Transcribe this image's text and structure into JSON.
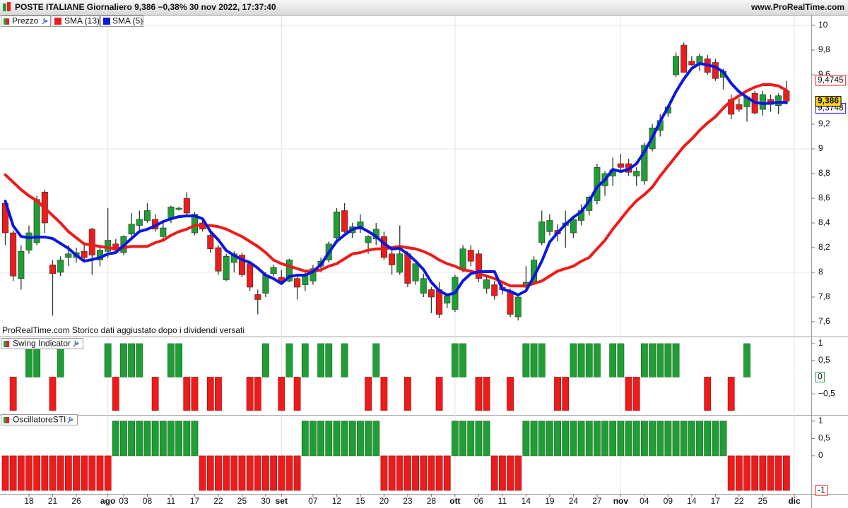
{
  "header": {
    "title": "POSTE ITALIANE Giornaliero 9,386 −0,38% 30 nov 2022, 17:37:40",
    "source": "www.ProRealTime.com"
  },
  "chart_data": [
    {
      "type": "candlestick",
      "name": "Prezzo",
      "annotation": "ProRealTime.com Storico dati aggiustato dopo i dividendi versati",
      "up_color": "#1f9e35",
      "down_color": "#ee1b1b",
      "price_label": "9,386",
      "grid": true,
      "categories": [
        null,
        null,
        null,
        "18",
        null,
        null,
        "21",
        null,
        null,
        "26",
        null,
        null,
        null,
        "ago",
        null,
        "03",
        null,
        null,
        "08",
        null,
        null,
        "11",
        null,
        null,
        "17",
        null,
        null,
        "22",
        null,
        null,
        "25",
        null,
        null,
        "30",
        null,
        "set",
        null,
        null,
        null,
        "07",
        null,
        null,
        "12",
        null,
        null,
        "15",
        null,
        null,
        "20",
        null,
        null,
        "23",
        null,
        null,
        "28",
        null,
        null,
        "ott",
        null,
        null,
        "06",
        null,
        null,
        "11",
        null,
        null,
        "14",
        null,
        null,
        "19",
        null,
        null,
        "24",
        null,
        null,
        "27",
        null,
        null,
        "nov",
        null,
        null,
        "04",
        null,
        null,
        "09",
        null,
        null,
        "14",
        null,
        null,
        "17",
        null,
        null,
        "22",
        null,
        null,
        "25",
        null,
        null,
        null,
        "dic"
      ],
      "open": [
        8.56,
        8.32,
        7.95,
        8.18,
        8.24,
        8.65,
        8.06,
        8.0,
        8.12,
        8.12,
        8.17,
        8.35,
        8.1,
        8.17,
        8.23,
        8.16,
        8.31,
        8.38,
        8.42,
        8.43,
        8.29,
        8.44,
        8.51,
        8.6,
        8.32,
        8.4,
        8.3,
        8.2,
        7.94,
        8.08,
        8.14,
        8.07,
        7.82,
        7.83,
        7.99,
        7.96,
        7.93,
        7.95,
        7.9,
        7.93,
        8.05,
        8.1,
        8.28,
        8.5,
        8.32,
        8.35,
        8.24,
        8.27,
        8.29,
        8.15,
        8.0,
        8.15,
        7.93,
        7.83,
        7.86,
        7.86,
        7.75,
        7.7,
        8.03,
        8.18,
        8.15,
        7.87,
        7.9,
        7.88,
        7.85,
        7.64,
        7.88,
        7.92,
        8.24,
        8.33,
        8.34,
        8.38,
        8.32,
        8.42,
        8.5,
        8.58,
        8.7,
        8.78,
        8.88,
        8.88,
        8.78,
        8.74,
        9.0,
        9.15,
        9.29,
        9.6,
        9.84,
        9.71,
        9.69,
        9.73,
        9.7,
        9.58,
        9.4,
        9.36,
        9.34,
        9.45,
        9.32,
        9.4,
        9.35,
        9.47,
        null
      ],
      "high": [
        8.58,
        8.34,
        8.22,
        8.38,
        8.62,
        8.67,
        8.1,
        8.13,
        8.22,
        8.2,
        8.22,
        8.36,
        8.2,
        8.52,
        8.27,
        8.3,
        8.48,
        8.5,
        8.56,
        8.47,
        8.4,
        8.54,
        8.53,
        8.65,
        8.49,
        8.44,
        8.32,
        8.22,
        8.15,
        8.17,
        8.16,
        8.09,
        7.86,
        8.0,
        8.06,
        8.02,
        8.11,
        7.98,
        8.0,
        8.06,
        8.12,
        8.25,
        8.52,
        8.56,
        8.4,
        8.47,
        8.3,
        8.4,
        8.33,
        8.2,
        8.38,
        8.17,
        8.07,
        7.99,
        7.88,
        7.92,
        7.82,
        7.98,
        8.22,
        8.22,
        8.18,
        7.96,
        7.93,
        7.92,
        7.87,
        7.83,
        8.05,
        8.13,
        8.5,
        8.47,
        8.39,
        8.5,
        8.45,
        8.55,
        8.62,
        8.88,
        8.82,
        8.93,
        8.96,
        8.92,
        8.85,
        9.05,
        9.2,
        9.28,
        9.36,
        9.78,
        9.86,
        9.75,
        9.77,
        9.76,
        9.73,
        9.65,
        9.44,
        9.41,
        9.43,
        9.47,
        9.47,
        9.44,
        9.45,
        9.55,
        null
      ],
      "low": [
        8.22,
        7.93,
        7.86,
        8.15,
        8.22,
        8.32,
        7.65,
        7.97,
        8.05,
        8.08,
        8.1,
        7.98,
        8.05,
        8.12,
        8.16,
        8.14,
        8.28,
        8.34,
        8.4,
        8.33,
        8.27,
        8.4,
        8.5,
        8.46,
        8.3,
        8.33,
        8.16,
        7.98,
        7.93,
        8.0,
        7.96,
        7.85,
        7.66,
        7.8,
        7.97,
        7.9,
        7.92,
        7.78,
        7.85,
        7.9,
        8.0,
        8.08,
        8.26,
        8.32,
        8.28,
        8.32,
        8.15,
        8.22,
        8.1,
        7.98,
        7.98,
        7.88,
        7.9,
        7.8,
        7.67,
        7.63,
        7.71,
        7.68,
        8.0,
        8.05,
        7.92,
        7.83,
        7.78,
        7.82,
        7.64,
        7.61,
        7.85,
        7.9,
        8.22,
        8.3,
        8.25,
        8.2,
        8.28,
        8.38,
        8.46,
        8.55,
        8.62,
        8.7,
        8.82,
        8.78,
        8.7,
        8.71,
        8.98,
        9.1,
        9.26,
        9.58,
        9.62,
        9.67,
        9.63,
        9.6,
        9.55,
        9.48,
        9.24,
        9.3,
        9.22,
        9.28,
        9.27,
        9.3,
        9.28,
        9.36,
        null
      ],
      "close": [
        8.32,
        7.97,
        8.17,
        8.32,
        8.59,
        8.4,
        7.99,
        8.1,
        8.15,
        8.16,
        8.12,
        8.14,
        8.18,
        8.26,
        8.18,
        8.29,
        8.39,
        8.43,
        8.5,
        8.35,
        8.36,
        8.53,
        8.52,
        8.48,
        8.47,
        8.35,
        8.19,
        8.01,
        8.13,
        8.15,
        7.98,
        7.88,
        7.78,
        7.98,
        8.04,
        7.93,
        8.1,
        7.88,
        7.98,
        8.03,
        8.09,
        8.23,
        8.49,
        8.33,
        8.37,
        8.41,
        8.29,
        8.35,
        8.12,
        8.06,
        8.15,
        7.91,
        8.07,
        7.95,
        7.8,
        7.66,
        7.81,
        7.96,
        8.19,
        8.09,
        7.95,
        7.94,
        7.81,
        7.86,
        7.66,
        7.8,
        7.92,
        8.1,
        8.41,
        8.42,
        8.31,
        8.4,
        8.43,
        8.5,
        8.61,
        8.85,
        8.8,
        8.83,
        8.85,
        8.81,
        8.82,
        9.03,
        9.17,
        9.23,
        9.34,
        9.75,
        9.62,
        9.68,
        9.75,
        9.62,
        9.57,
        9.63,
        9.28,
        9.32,
        9.42,
        9.29,
        9.44,
        9.36,
        9.43,
        9.386,
        null
      ],
      "lines": [
        {
          "name": "SMA (13)",
          "color": "#ee1b1b",
          "last_label": "9,4745",
          "values": [
            8.79,
            8.73,
            8.67,
            8.62,
            8.58,
            8.52,
            8.46,
            8.4,
            8.33,
            8.28,
            8.23,
            8.22,
            8.21,
            8.2,
            8.19,
            8.2,
            8.21,
            8.21,
            8.21,
            8.24,
            8.26,
            8.3,
            8.33,
            8.35,
            8.38,
            8.38,
            8.38,
            8.37,
            8.35,
            8.32,
            8.29,
            8.25,
            8.21,
            8.16,
            8.1,
            8.07,
            8.05,
            8.03,
            8.01,
            8.01,
            8.02,
            8.05,
            8.07,
            8.11,
            8.15,
            8.16,
            8.18,
            8.19,
            8.19,
            8.2,
            8.21,
            8.2,
            8.19,
            8.17,
            8.14,
            8.1,
            8.07,
            8.05,
            8.02,
            8.01,
            7.99,
            7.97,
            7.95,
            7.92,
            7.89,
            7.89,
            7.89,
            7.91,
            7.93,
            7.97,
            8.01,
            8.03,
            8.05,
            8.09,
            8.12,
            8.19,
            8.26,
            8.35,
            8.43,
            8.51,
            8.58,
            8.63,
            8.69,
            8.78,
            8.86,
            8.94,
            9.02,
            9.08,
            9.15,
            9.21,
            9.26,
            9.33,
            9.39,
            9.43,
            9.47,
            9.5,
            9.52,
            9.52,
            9.51,
            9.4745,
            null
          ]
        },
        {
          "name": "SMA (5)",
          "color": "#0b16de",
          "last_label": "9,3748",
          "values": [
            8.577,
            8.377,
            8.291,
            8.28,
            8.286,
            8.286,
            8.274,
            8.234,
            8.194,
            8.137,
            8.091,
            8.103,
            8.12,
            8.149,
            8.16,
            8.217,
            8.274,
            8.331,
            8.349,
            8.377,
            8.411,
            8.434,
            8.451,
            8.457,
            8.457,
            8.434,
            8.331,
            8.263,
            8.177,
            8.137,
            8.103,
            8.08,
            8.034,
            7.977,
            7.949,
            7.909,
            7.966,
            7.977,
            7.977,
            8.006,
            8.063,
            8.16,
            8.251,
            8.303,
            8.349,
            8.366,
            8.331,
            8.291,
            8.234,
            8.189,
            8.194,
            8.149,
            8.091,
            8.023,
            7.92,
            7.851,
            7.817,
            7.834,
            7.931,
            7.989,
            8.006,
            8.006,
            8.006,
            7.863,
            7.846,
            7.817,
            7.851,
            7.966,
            8.091,
            8.246,
            8.32,
            8.389,
            8.446,
            8.491,
            8.577,
            8.691,
            8.749,
            8.834,
            8.817,
            8.834,
            8.88,
            8.977,
            9.091,
            9.223,
            9.337,
            9.463,
            9.566,
            9.651,
            9.691,
            9.68,
            9.663,
            9.623,
            9.531,
            9.463,
            9.417,
            9.377,
            9.366,
            9.371,
            9.377,
            9.3748,
            null
          ]
        }
      ],
      "ylim": [
        7.48,
        10.08
      ],
      "yticks": [
        {
          "value": 7.6,
          "label": "7,6"
        },
        {
          "value": 7.8,
          "label": "7,8"
        },
        8,
        {
          "value": 8.2,
          "label": "8,2"
        },
        {
          "value": 8.4,
          "label": "8,4"
        },
        {
          "value": 8.6,
          "label": "8,6"
        },
        {
          "value": 8.8,
          "label": "8,8"
        },
        9,
        {
          "value": 9.2,
          "label": "9,2"
        },
        {
          "value": 9.6,
          "label": "9,6"
        },
        {
          "value": 9.8,
          "label": "9,8"
        },
        10
      ]
    },
    {
      "type": "bar",
      "title": "Swing Indicator",
      "up_color": "#1f9e35",
      "down_color": "#ee1b1b",
      "last_label": "0",
      "values": [
        0,
        -1,
        0,
        1,
        1,
        0,
        -1,
        1,
        0,
        0,
        0,
        0,
        0,
        1,
        -1,
        1,
        1,
        1,
        0,
        -1,
        0,
        1,
        1,
        -1,
        -1,
        0,
        -1,
        -1,
        0,
        0,
        0,
        -1,
        -1,
        1,
        0,
        -1,
        1,
        -1,
        1,
        0,
        1,
        1,
        0,
        1,
        0,
        0,
        -1,
        1,
        -1,
        0,
        0,
        -1,
        0,
        0,
        0,
        -1,
        0,
        1,
        1,
        0,
        -1,
        -1,
        0,
        0,
        -1,
        0,
        1,
        1,
        1,
        0,
        -1,
        -1,
        1,
        1,
        1,
        1,
        0,
        1,
        1,
        -1,
        -1,
        1,
        1,
        1,
        1,
        1,
        0,
        0,
        0,
        -1,
        0,
        0,
        -1,
        0,
        1,
        0,
        0,
        0,
        0,
        0,
        null
      ],
      "ylim": [
        -1.13,
        1.19
      ],
      "yticks": [
        1,
        {
          "value": 0.5,
          "label": "0,5"
        },
        {
          "value": -0.5,
          "label": "−0,5"
        }
      ]
    },
    {
      "type": "bar",
      "title": "OscillatoreSTI",
      "up_color": "#1f9e35",
      "down_color": "#ee1b1b",
      "last_label": "-1",
      "values": [
        -1,
        -1,
        -1,
        -1,
        -1,
        -1,
        -1,
        -1,
        -1,
        -1,
        -1,
        -1,
        -1,
        -1,
        1,
        1,
        1,
        1,
        1,
        1,
        1,
        1,
        1,
        1,
        1,
        -1,
        -1,
        -1,
        -1,
        -1,
        -1,
        -1,
        -1,
        -1,
        -1,
        -1,
        -1,
        -1,
        1,
        1,
        1,
        1,
        1,
        1,
        1,
        1,
        1,
        1,
        -1,
        -1,
        -1,
        -1,
        -1,
        -1,
        -1,
        -1,
        -1,
        1,
        1,
        1,
        1,
        1,
        -1,
        -1,
        -1,
        -1,
        1,
        1,
        1,
        1,
        1,
        1,
        1,
        1,
        1,
        1,
        1,
        1,
        1,
        1,
        1,
        1,
        1,
        1,
        1,
        1,
        1,
        1,
        1,
        1,
        1,
        1,
        -1,
        -1,
        -1,
        -1,
        -1,
        -1,
        -1,
        -1,
        null
      ],
      "ylim": [
        -1.1,
        1.16
      ],
      "yticks": [
        1,
        {
          "value": 0.5,
          "label": "0,5"
        },
        0
      ]
    }
  ]
}
